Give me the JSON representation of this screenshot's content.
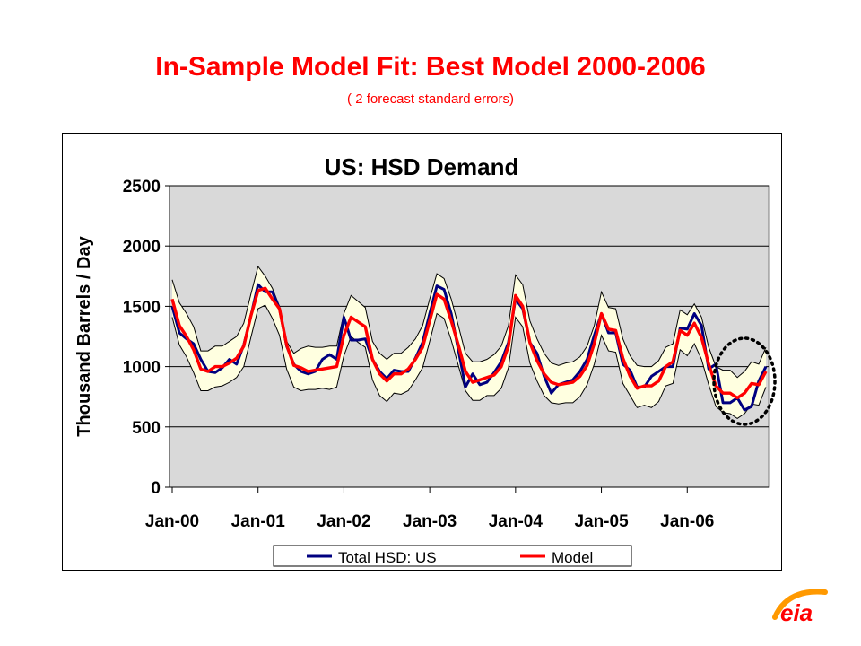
{
  "slide": {
    "title": "In-Sample Model Fit:  Best Model  2000-2006",
    "subtitle": "( 2 forecast standard errors)",
    "title_color": "#ff0000"
  },
  "logo": {
    "icon": "eia-logo",
    "text": "eia",
    "colors": [
      "#ff0000",
      "#ff9900"
    ]
  },
  "chart_data": {
    "type": "line",
    "title": "US:  HSD Demand",
    "ylabel": "Thousand Barrels / Day",
    "xlabel": "",
    "ylim": [
      0,
      2500
    ],
    "yticks": [
      0,
      500,
      1000,
      1500,
      2000,
      2500
    ],
    "x_start": "2000-01",
    "x_end": "2006-12",
    "xticks": [
      "Jan-00",
      "Jan-01",
      "Jan-02",
      "Jan-03",
      "Jan-04",
      "Jan-05",
      "Jan-06"
    ],
    "grid": true,
    "legend_position": "bottom",
    "band_label": "2 forecast standard errors",
    "series": [
      {
        "name": "Total HSD:  US",
        "color": "#000080",
        "values": [
          1500,
          1280,
          1230,
          1190,
          1060,
          960,
          950,
          990,
          1060,
          1020,
          1180,
          1420,
          1680,
          1620,
          1620,
          1480,
          1170,
          1020,
          960,
          940,
          960,
          1060,
          1100,
          1060,
          1410,
          1220,
          1220,
          1230,
          1060,
          960,
          900,
          970,
          960,
          960,
          1070,
          1200,
          1440,
          1670,
          1640,
          1440,
          1140,
          830,
          940,
          850,
          870,
          950,
          1040,
          1200,
          1560,
          1480,
          1200,
          1110,
          920,
          780,
          850,
          870,
          890,
          960,
          1060,
          1260,
          1440,
          1280,
          1280,
          1020,
          970,
          830,
          830,
          920,
          960,
          1000,
          1000,
          1320,
          1310,
          1440,
          1340,
          980,
          1020,
          700,
          700,
          740,
          640,
          670,
          880,
          1000
        ]
      },
      {
        "name": "Model",
        "color": "#ff0000",
        "values": [
          1560,
          1340,
          1250,
          1140,
          980,
          960,
          1000,
          1000,
          1030,
          1070,
          1170,
          1420,
          1630,
          1650,
          1560,
          1480,
          1180,
          1010,
          990,
          960,
          970,
          980,
          990,
          1000,
          1260,
          1410,
          1370,
          1330,
          1060,
          940,
          880,
          940,
          940,
          980,
          1060,
          1160,
          1380,
          1600,
          1560,
          1380,
          1180,
          960,
          870,
          890,
          910,
          930,
          1000,
          1170,
          1590,
          1500,
          1200,
          1050,
          940,
          870,
          850,
          860,
          870,
          920,
          1010,
          1190,
          1440,
          1310,
          1300,
          1070,
          920,
          820,
          840,
          840,
          880,
          1000,
          1040,
          1300,
          1260,
          1360,
          1240,
          1020,
          840,
          780,
          780,
          740,
          780,
          860,
          850,
          960
        ]
      }
    ],
    "band_upper": [
      1720,
      1530,
      1440,
      1330,
      1130,
      1130,
      1170,
      1170,
      1210,
      1250,
      1360,
      1600,
      1830,
      1750,
      1650,
      1500,
      1210,
      1110,
      1150,
      1170,
      1160,
      1160,
      1170,
      1170,
      1440,
      1590,
      1540,
      1490,
      1210,
      1110,
      1060,
      1110,
      1110,
      1160,
      1230,
      1340,
      1560,
      1770,
      1730,
      1560,
      1340,
      1110,
      1040,
      1040,
      1060,
      1100,
      1170,
      1340,
      1760,
      1680,
      1380,
      1230,
      1110,
      1030,
      1010,
      1030,
      1040,
      1080,
      1170,
      1340,
      1620,
      1490,
      1480,
      1230,
      1090,
      1010,
      1000,
      1000,
      1050,
      1160,
      1190,
      1470,
      1430,
      1520,
      1410,
      1160,
      1000,
      970,
      970,
      910,
      960,
      1040,
      1020,
      1160
    ],
    "band_lower": [
      1410,
      1180,
      1080,
      950,
      800,
      800,
      830,
      840,
      870,
      910,
      1000,
      1240,
      1480,
      1510,
      1400,
      1260,
      980,
      830,
      800,
      810,
      810,
      820,
      810,
      830,
      1090,
      1250,
      1200,
      1160,
      890,
      760,
      710,
      780,
      770,
      800,
      890,
      990,
      1210,
      1440,
      1400,
      1220,
      1010,
      800,
      720,
      720,
      760,
      760,
      820,
      990,
      1410,
      1330,
      1030,
      880,
      760,
      700,
      690,
      700,
      700,
      750,
      850,
      1020,
      1260,
      1130,
      1120,
      860,
      760,
      660,
      680,
      660,
      710,
      840,
      860,
      1140,
      1090,
      1190,
      1060,
      850,
      670,
      620,
      610,
      570,
      610,
      690,
      680,
      830
    ]
  }
}
